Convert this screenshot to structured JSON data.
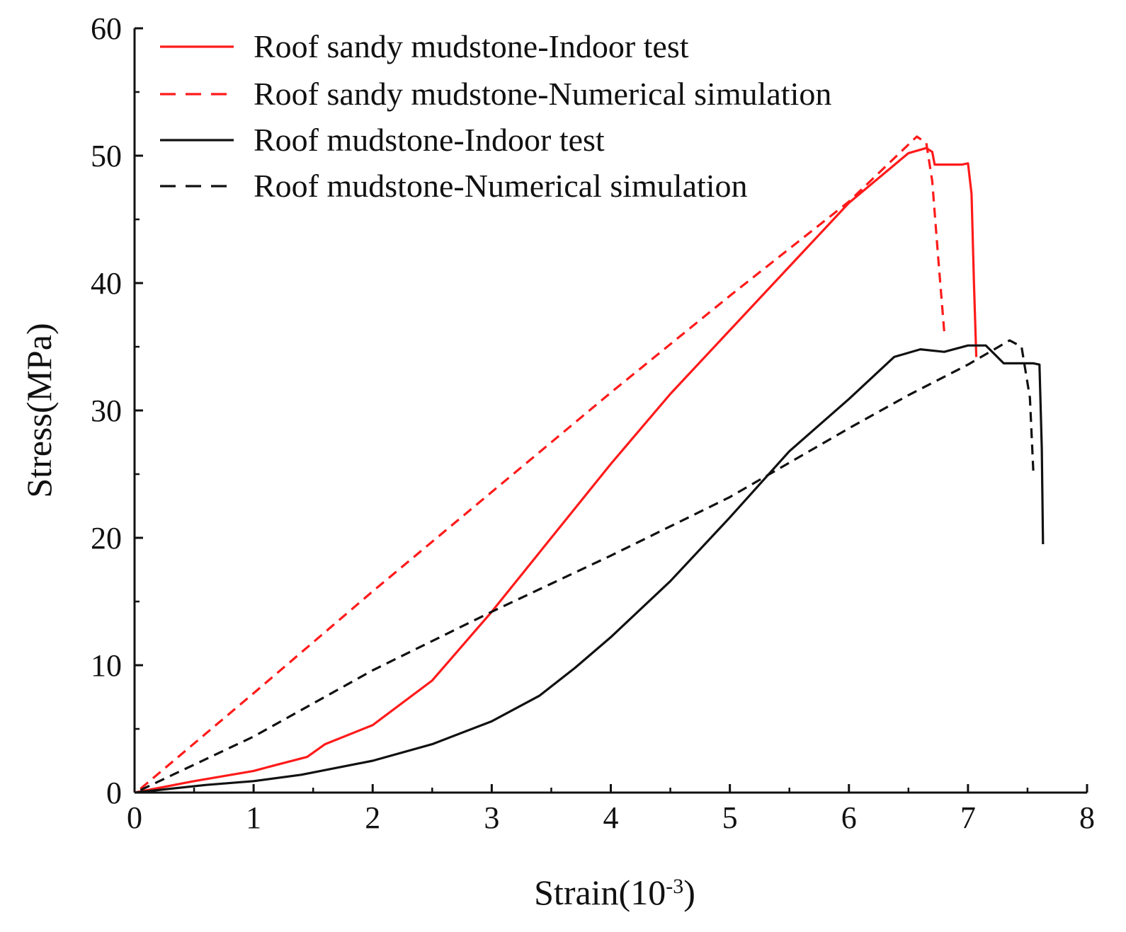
{
  "chart_data": {
    "type": "line",
    "title": "",
    "xlabel": {
      "base": "Strain(10",
      "superscript": "-3",
      "close": ")"
    },
    "ylabel": "Stress(MPa)",
    "xlim": [
      0,
      8
    ],
    "ylim": [
      0,
      60
    ],
    "xticks": [
      "0",
      "1",
      "2",
      "3",
      "4",
      "5",
      "6",
      "7",
      "8"
    ],
    "yticks": [
      "0",
      "10",
      "20",
      "30",
      "40",
      "50",
      "60"
    ],
    "legend_position": "top-left",
    "grid": false,
    "series": [
      {
        "name": "Roof sandy mudstone-Indoor test",
        "color": "#ff1a1a",
        "style": "solid",
        "points": [
          [
            0,
            0
          ],
          [
            0.5,
            0.9
          ],
          [
            1.0,
            1.7
          ],
          [
            1.2,
            2.2
          ],
          [
            1.45,
            2.8
          ],
          [
            1.6,
            3.8
          ],
          [
            2.0,
            5.3
          ],
          [
            2.5,
            8.8
          ],
          [
            3.0,
            14.2
          ],
          [
            3.5,
            20.0
          ],
          [
            4.0,
            25.8
          ],
          [
            4.5,
            31.3
          ],
          [
            5.0,
            36.3
          ],
          [
            5.5,
            41.3
          ],
          [
            6.0,
            46.3
          ],
          [
            6.5,
            50.2
          ],
          [
            6.65,
            50.6
          ],
          [
            6.7,
            50.3
          ],
          [
            6.72,
            49.3
          ],
          [
            6.95,
            49.3
          ],
          [
            7.0,
            49.4
          ],
          [
            7.03,
            47.0
          ],
          [
            7.05,
            40.0
          ],
          [
            7.07,
            34.2
          ]
        ]
      },
      {
        "name": "Roof sandy mudstone-Numerical simulation",
        "color": "#ff1a1a",
        "style": "dashed",
        "points": [
          [
            0.05,
            0.3
          ],
          [
            1.0,
            7.8
          ],
          [
            2.0,
            15.8
          ],
          [
            3.0,
            23.6
          ],
          [
            4.0,
            31.4
          ],
          [
            5.0,
            39.0
          ],
          [
            6.0,
            46.4
          ],
          [
            6.57,
            51.5
          ],
          [
            6.65,
            51.0
          ],
          [
            6.7,
            48.0
          ],
          [
            6.75,
            42.0
          ],
          [
            6.8,
            36.2
          ]
        ]
      },
      {
        "name": "Roof mudstone-Indoor test",
        "color": "#111111",
        "style": "solid",
        "points": [
          [
            0,
            0
          ],
          [
            0.6,
            0.6
          ],
          [
            1.0,
            0.9
          ],
          [
            1.4,
            1.4
          ],
          [
            2.0,
            2.5
          ],
          [
            2.5,
            3.8
          ],
          [
            3.0,
            5.6
          ],
          [
            3.4,
            7.6
          ],
          [
            3.7,
            9.8
          ],
          [
            4.0,
            12.2
          ],
          [
            4.5,
            16.6
          ],
          [
            5.0,
            21.6
          ],
          [
            5.5,
            26.8
          ],
          [
            6.0,
            30.9
          ],
          [
            6.38,
            34.2
          ],
          [
            6.6,
            34.8
          ],
          [
            6.8,
            34.6
          ],
          [
            7.0,
            35.1
          ],
          [
            7.15,
            35.1
          ],
          [
            7.3,
            33.7
          ],
          [
            7.55,
            33.7
          ],
          [
            7.6,
            33.6
          ],
          [
            7.62,
            27.0
          ],
          [
            7.63,
            19.5
          ]
        ]
      },
      {
        "name": "Roof mudstone-Numerical simulation",
        "color": "#111111",
        "style": "dashed",
        "points": [
          [
            0.05,
            0.2
          ],
          [
            1.0,
            4.4
          ],
          [
            2.0,
            9.6
          ],
          [
            3.0,
            14.2
          ],
          [
            4.0,
            18.6
          ],
          [
            5.0,
            23.2
          ],
          [
            6.0,
            28.6
          ],
          [
            6.5,
            31.2
          ],
          [
            7.0,
            33.6
          ],
          [
            7.35,
            35.5
          ],
          [
            7.45,
            35.0
          ],
          [
            7.52,
            31.0
          ],
          [
            7.55,
            25.0
          ]
        ]
      }
    ]
  }
}
